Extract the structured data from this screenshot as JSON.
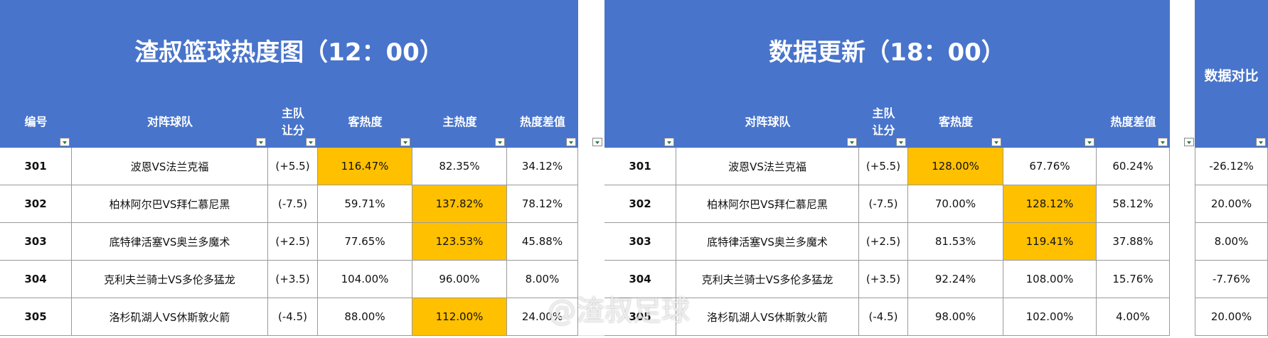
{
  "tables": [
    {
      "title": "渣叔篮球热度图（12：00）",
      "headers": [
        "编号",
        "对阵球队",
        "主队让分",
        "客热度",
        "主热度",
        "热度差值"
      ],
      "rows": [
        [
          "301",
          "波恩VS法兰克福",
          "(+5.5)",
          "116.47%",
          "82.35%",
          "34.12%"
        ],
        [
          "302",
          "柏林阿尔巴VS拜仁慕尼黑",
          "(-7.5)",
          "59.71%",
          "137.82%",
          "78.12%"
        ],
        [
          "303",
          "底特律活塞VS奥兰多魔术",
          "(+2.5)",
          "77.65%",
          "123.53%",
          "45.88%"
        ],
        [
          "304",
          "克利夫兰骑士VS多伦多猛龙",
          "(+3.5)",
          "104.00%",
          "96.00%",
          "8.00%"
        ],
        [
          "305",
          "洛杉矶湖人VS休斯敦火箭",
          "(-4.5)",
          "88.00%",
          "112.00%",
          "24.00%"
        ]
      ],
      "highlight_cells": [
        [
          0,
          3
        ],
        [
          1,
          4
        ],
        [
          2,
          4
        ],
        [
          4,
          4
        ]
      ]
    },
    {
      "title": "数据更新（18：00）",
      "headers": [
        null,
        "对阵球队",
        "主队让分",
        "客热度",
        null,
        "热度差值"
      ],
      "rows": [
        [
          "301",
          "波恩VS法兰克福",
          "(+5.5)",
          "128.00%",
          "67.76%",
          "60.24%"
        ],
        [
          "302",
          "柏林阿尔巴VS拜仁慕尼黑",
          "(-7.5)",
          "70.00%",
          "128.12%",
          "58.12%"
        ],
        [
          "303",
          "底特律活塞VS奥兰多魔术",
          "(+2.5)",
          "81.53%",
          "119.41%",
          "37.88%"
        ],
        [
          "304",
          "克利夫兰骑士VS多伦多猛龙",
          "(+3.5)",
          "92.24%",
          "108.00%",
          "15.76%"
        ],
        [
          "305",
          "洛杉矶湖人VS休斯敦火箭",
          "(-4.5)",
          "98.00%",
          "102.00%",
          "4.00%"
        ]
      ],
      "highlight_cells": [
        [
          0,
          3
        ],
        [
          1,
          4
        ],
        [
          2,
          4
        ]
      ]
    }
  ],
  "compare": {
    "header": "数据对比",
    "rows": [
      "-26.12%",
      "20.00%",
      "8.00%",
      "-7.76%",
      "20.00%"
    ]
  },
  "header_color": "#4874cb",
  "highlight_color": "#ffc000",
  "watermark": "@渣叔足球"
}
